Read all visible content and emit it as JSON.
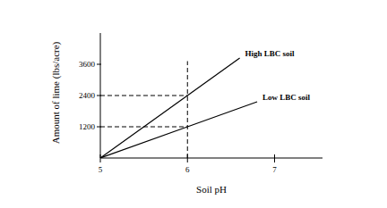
{
  "chart_data": {
    "type": "line",
    "x_label": "Soil pH",
    "y_label": "Amount of lime (lbs/acre)",
    "x": [
      5,
      6,
      6.6,
      6.8
    ],
    "series": [
      {
        "name": "High LBC soil",
        "color": "#000000",
        "line_style": "solid",
        "values": [
          0,
          2400,
          3840,
          null
        ]
      },
      {
        "name": "Low LBC soil",
        "color": "#000000",
        "line_style": "solid",
        "values": [
          0,
          1200,
          1920,
          2160
        ]
      }
    ],
    "guides": [
      {
        "x": [
          6,
          6
        ],
        "y": [
          0,
          3720
        ]
      },
      {
        "x": [
          5,
          6
        ],
        "y": [
          2400,
          2400
        ]
      },
      {
        "x": [
          5,
          6
        ],
        "y": [
          1200,
          1200
        ]
      }
    ],
    "xlim": [
      5,
      7.55
    ],
    "ylim": [
      0,
      4800
    ],
    "xticks": [
      5,
      6,
      7
    ],
    "yticks": [
      1200,
      2400,
      3600
    ],
    "grid": false
  }
}
